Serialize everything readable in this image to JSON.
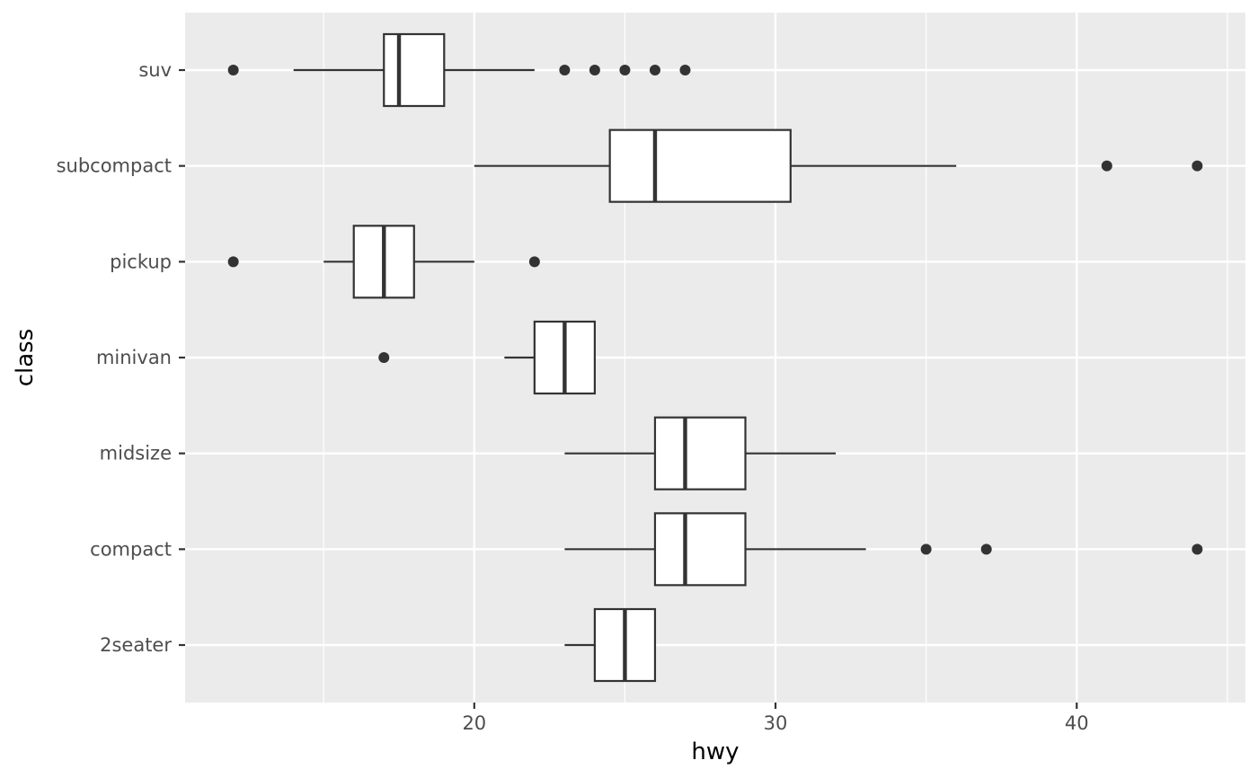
{
  "chart_data": {
    "type": "boxplot",
    "orientation": "horizontal",
    "title": "",
    "xlabel": "hwy",
    "ylabel": "class",
    "xlim": [
      10.4,
      45.6
    ],
    "x_ticks": [
      20,
      30,
      40
    ],
    "x_tick_labels": [
      "20",
      "30",
      "40"
    ],
    "grid": true,
    "legend": "none",
    "colors": {
      "panel_background": "#ebebeb",
      "grid_line": "#ffffff",
      "box_fill": "#ffffff",
      "box_stroke": "#333333",
      "point": "#333333",
      "tick_text": "#4d4d4d",
      "title_text": "#000000"
    },
    "categories": [
      "2seater",
      "compact",
      "midsize",
      "minivan",
      "pickup",
      "subcompact",
      "suv"
    ],
    "boxes": [
      {
        "category": "2seater",
        "whisker_low": 23,
        "q1": 24,
        "median": 25,
        "q3": 26,
        "whisker_high": 26,
        "outliers": []
      },
      {
        "category": "compact",
        "whisker_low": 23,
        "q1": 26,
        "median": 27,
        "q3": 29,
        "whisker_high": 33,
        "outliers": [
          35,
          37,
          44
        ]
      },
      {
        "category": "midsize",
        "whisker_low": 23,
        "q1": 26,
        "median": 27,
        "q3": 29,
        "whisker_high": 32,
        "outliers": []
      },
      {
        "category": "minivan",
        "whisker_low": 21,
        "q1": 22,
        "median": 23,
        "q3": 24,
        "whisker_high": 24,
        "outliers": [
          17
        ]
      },
      {
        "category": "pickup",
        "whisker_low": 15,
        "q1": 16,
        "median": 17,
        "q3": 18,
        "whisker_high": 20,
        "outliers": [
          12,
          22
        ]
      },
      {
        "category": "subcompact",
        "whisker_low": 20,
        "q1": 24.5,
        "median": 26,
        "q3": 30.5,
        "whisker_high": 36,
        "outliers": [
          41,
          44
        ]
      },
      {
        "category": "suv",
        "whisker_low": 14,
        "q1": 17,
        "median": 17.5,
        "q3": 19,
        "whisker_high": 22,
        "outliers": [
          12,
          23,
          24,
          25,
          26,
          27
        ]
      }
    ]
  }
}
